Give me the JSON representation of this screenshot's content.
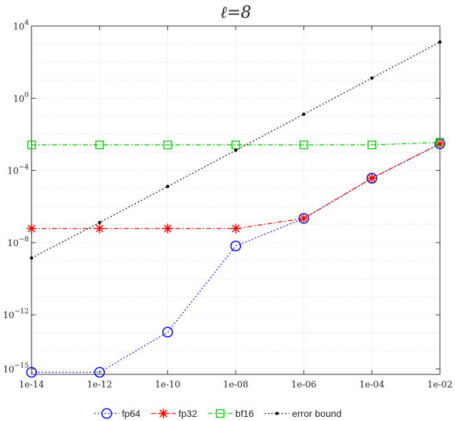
{
  "chart_data": {
    "type": "line",
    "title": "ℓ=8",
    "xlabel": "",
    "ylabel": "",
    "x_scale": "log",
    "y_scale": "log",
    "x": [
      1e-14,
      1e-12,
      1e-10,
      1e-08,
      1e-06,
      0.0001,
      0.01
    ],
    "x_tick_labels": [
      "1e-14",
      "1e-12",
      "1e-10",
      "1e-08",
      "1e-06",
      "1e-04",
      "1e-02"
    ],
    "xlim": [
      1e-14,
      0.01
    ],
    "ylim": [
      5e-16,
      10000.0
    ],
    "y_ticks": [
      {
        "base": "10",
        "exp": "4"
      },
      {
        "base": "10",
        "exp": "0"
      },
      {
        "base": "10",
        "exp": "−4"
      },
      {
        "base": "10",
        "exp": "−8"
      },
      {
        "base": "10",
        "exp": "−12"
      },
      {
        "base": "10",
        "exp": "−15"
      }
    ],
    "y_tick_values": [
      10000.0,
      1.0,
      0.0001,
      1e-08,
      1e-12,
      1e-15
    ],
    "grid": true,
    "legend_position": "bottom-outside",
    "series": [
      {
        "name": "fp64",
        "color": "#0000ff",
        "marker": "circle",
        "dash": "dotted",
        "values": [
          6.5e-16,
          6.5e-16,
          1.1e-13,
          6.5e-09,
          2.2e-07,
          3.7e-05,
          0.003
        ]
      },
      {
        "name": "fp32",
        "color": "#ff0000",
        "marker": "asterisk",
        "dash": "dashdot",
        "values": [
          6e-08,
          6e-08,
          6e-08,
          6e-08,
          2.2e-07,
          3.7e-05,
          0.003
        ]
      },
      {
        "name": "bf16",
        "color": "#00cc00",
        "marker": "square",
        "dash": "dashdot",
        "values": [
          0.0026,
          0.0026,
          0.0026,
          0.0026,
          0.0026,
          0.0026,
          0.0036
        ]
      },
      {
        "name": "error bound",
        "color": "#000000",
        "marker": "dot",
        "dash": "dotted",
        "values": [
          1.4e-09,
          1.3e-07,
          1.3e-05,
          0.0013,
          0.13,
          13.0,
          1300.0
        ]
      }
    ]
  }
}
